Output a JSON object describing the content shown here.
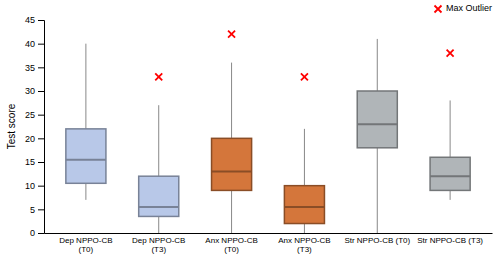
{
  "chart_data": {
    "type": "box",
    "categories": [
      "Dep NPPO-CB\n(T0)",
      "Dep NPPO-CB\n(T3)",
      "Anx NPPO-CB\n(T0)",
      "Anx NPPO-CB\n(T3)",
      "Str NPPO-CB (T0)",
      "Str NPPO-CB (T3)"
    ],
    "q1": [
      10.5,
      3.5,
      9,
      2,
      18,
      9
    ],
    "median": [
      15.5,
      5.5,
      13,
      5.5,
      23,
      12
    ],
    "q3": [
      22,
      12,
      20,
      10,
      30,
      16
    ],
    "whisker_low": [
      7,
      0,
      0,
      0,
      0,
      7
    ],
    "whisker_high": [
      40,
      27,
      36,
      22,
      41,
      28
    ],
    "colors": [
      "#b8c8e8",
      "#b8c8e8",
      "#d4763b",
      "#d4763b",
      "#b0b5b8",
      "#b0b5b8"
    ],
    "series": [
      {
        "name": "Max Outlier",
        "type": "scatter",
        "color": "#ff0000",
        "marker": "x",
        "values": [
          null,
          33,
          42,
          33,
          null,
          38
        ]
      }
    ],
    "ylabel": "Test score",
    "ylim": [
      0,
      45
    ],
    "yticks": [
      0,
      5,
      10,
      15,
      20,
      25,
      30,
      35,
      40,
      45
    ],
    "grid": false,
    "legend": "upper right"
  }
}
